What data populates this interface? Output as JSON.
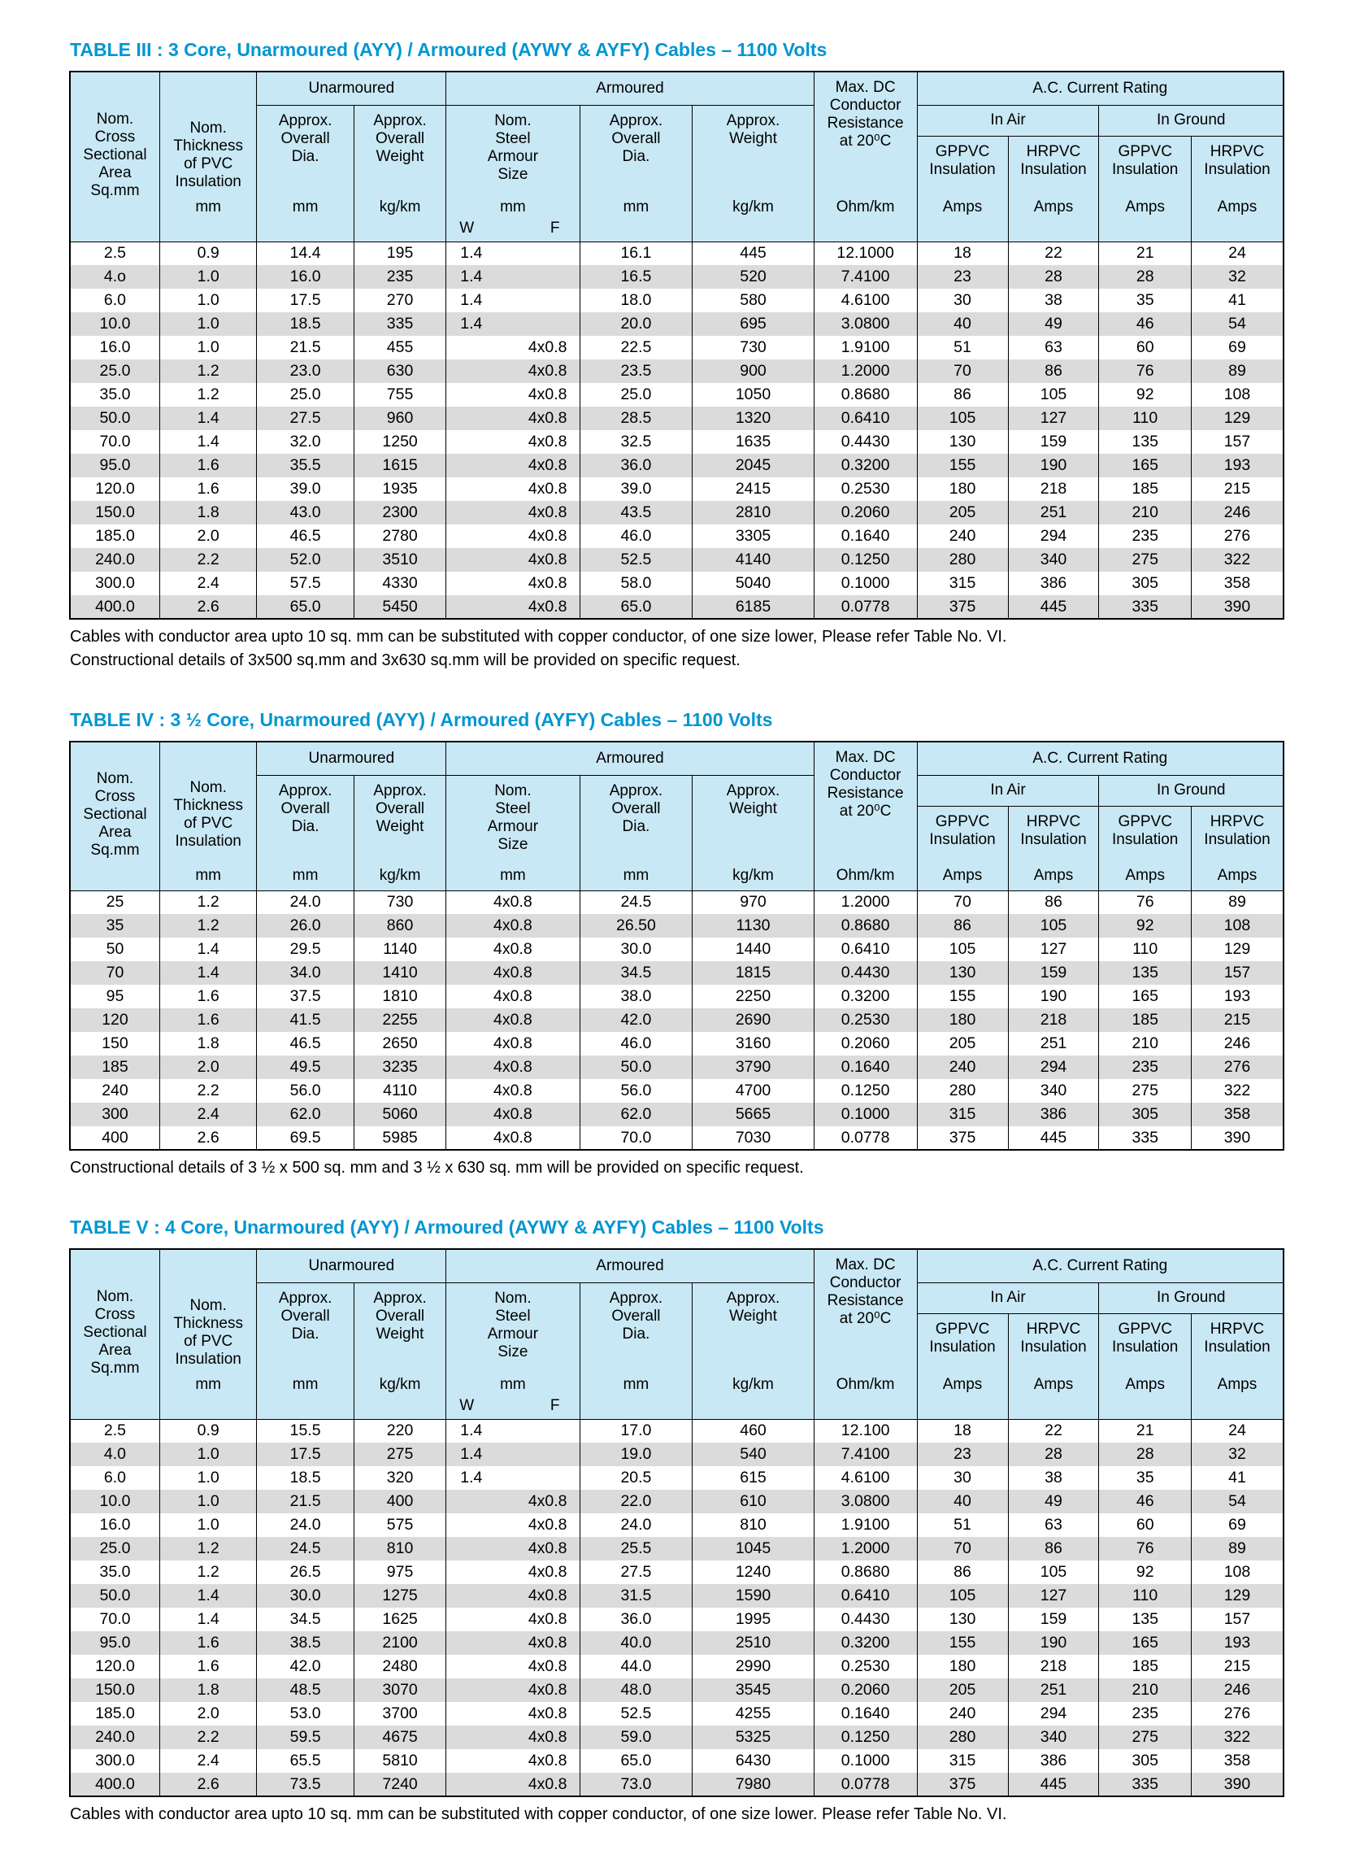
{
  "page": {
    "title_color": "#0096D2",
    "header_bg": "#C9E8F5",
    "stripe_color": "#DBDBDB"
  },
  "column_headers": {
    "col_area": {
      "label": [
        "Nom.",
        "Cross",
        "Sectional",
        "Area",
        "Sq.mm"
      ]
    },
    "col_thickness": {
      "label": [
        "Nom.",
        "Thickness",
        "of PVC",
        "Insulation"
      ],
      "unit": "mm"
    },
    "group_unarmoured": "Unarmoured",
    "group_armoured": "Armoured",
    "group_ac_rating": "A.C. Current Rating",
    "group_in_air": "In Air",
    "group_in_ground": "In Ground",
    "col_max_dc": {
      "label": [
        "Max. DC",
        "Conductor",
        "Resistance",
        "at 20⁰C"
      ],
      "unit": "Ohm/km"
    },
    "unarmoured": [
      {
        "label": [
          "Approx.",
          "Overall",
          "Dia."
        ],
        "unit": "mm"
      },
      {
        "label": [
          "Approx.",
          "Overall",
          "Weight"
        ],
        "unit": "kg/km"
      }
    ],
    "armoured": [
      {
        "label": [
          "Nom.",
          "Steel",
          "Armour",
          "Size"
        ],
        "unit": "mm",
        "sub": [
          "W",
          "F"
        ]
      },
      {
        "label": [
          "Approx.",
          "Overall",
          "Dia."
        ],
        "unit": "mm"
      },
      {
        "label": [
          "Approx.",
          "Weight"
        ],
        "unit": "kg/km"
      }
    ],
    "ratings": [
      {
        "label": [
          "GPPVC",
          "Insulation"
        ],
        "unit": "Amps"
      },
      {
        "label": [
          "HRPVC",
          "Insulation"
        ],
        "unit": "Amps"
      },
      {
        "label": [
          "GPPVC",
          "Insulation"
        ],
        "unit": "Amps"
      },
      {
        "label": [
          "HRPVC",
          "Insulation"
        ],
        "unit": "Amps"
      }
    ]
  },
  "tables": [
    {
      "id": "iii",
      "title": "TABLE III : 3 Core, Unarmoured (AYY) / Armoured (AYWY & AYFY) Cables – 1100 Volts",
      "show_wf": true,
      "rows": [
        [
          "2.5",
          "0.9",
          "14.4",
          "195",
          "1.4",
          "16.1",
          "445",
          "12.1000",
          "18",
          "22",
          "21",
          "24"
        ],
        [
          "4.o",
          "1.0",
          "16.0",
          "235",
          "1.4",
          "16.5",
          "520",
          "7.4100",
          "23",
          "28",
          "28",
          "32"
        ],
        [
          "6.0",
          "1.0",
          "17.5",
          "270",
          "1.4",
          "18.0",
          "580",
          "4.6100",
          "30",
          "38",
          "35",
          "41"
        ],
        [
          "10.0",
          "1.0",
          "18.5",
          "335",
          "1.4",
          "20.0",
          "695",
          "3.0800",
          "40",
          "49",
          "46",
          "54"
        ],
        [
          "16.0",
          "1.0",
          "21.5",
          "455",
          "4x0.8",
          "22.5",
          "730",
          "1.9100",
          "51",
          "63",
          "60",
          "69"
        ],
        [
          "25.0",
          "1.2",
          "23.0",
          "630",
          "4x0.8",
          "23.5",
          "900",
          "1.2000",
          "70",
          "86",
          "76",
          "89"
        ],
        [
          "35.0",
          "1.2",
          "25.0",
          "755",
          "4x0.8",
          "25.0",
          "1050",
          "0.8680",
          "86",
          "105",
          "92",
          "108"
        ],
        [
          "50.0",
          "1.4",
          "27.5",
          "960",
          "4x0.8",
          "28.5",
          "1320",
          "0.6410",
          "105",
          "127",
          "110",
          "129"
        ],
        [
          "70.0",
          "1.4",
          "32.0",
          "1250",
          "4x0.8",
          "32.5",
          "1635",
          "0.4430",
          "130",
          "159",
          "135",
          "157"
        ],
        [
          "95.0",
          "1.6",
          "35.5",
          "1615",
          "4x0.8",
          "36.0",
          "2045",
          "0.3200",
          "155",
          "190",
          "165",
          "193"
        ],
        [
          "120.0",
          "1.6",
          "39.0",
          "1935",
          "4x0.8",
          "39.0",
          "2415",
          "0.2530",
          "180",
          "218",
          "185",
          "215"
        ],
        [
          "150.0",
          "1.8",
          "43.0",
          "2300",
          "4x0.8",
          "43.5",
          "2810",
          "0.2060",
          "205",
          "251",
          "210",
          "246"
        ],
        [
          "185.0",
          "2.0",
          "46.5",
          "2780",
          "4x0.8",
          "46.0",
          "3305",
          "0.1640",
          "240",
          "294",
          "235",
          "276"
        ],
        [
          "240.0",
          "2.2",
          "52.0",
          "3510",
          "4x0.8",
          "52.5",
          "4140",
          "0.1250",
          "280",
          "340",
          "275",
          "322"
        ],
        [
          "300.0",
          "2.4",
          "57.5",
          "4330",
          "4x0.8",
          "58.0",
          "5040",
          "0.1000",
          "315",
          "386",
          "305",
          "358"
        ],
        [
          "400.0",
          "2.6",
          "65.0",
          "5450",
          "4x0.8",
          "65.0",
          "6185",
          "0.0778",
          "375",
          "445",
          "335",
          "390"
        ]
      ],
      "notes": [
        "Cables with conductor area upto 10 sq. mm can be substituted with copper conductor, of one size lower, Please refer Table No. VI.",
        "Constructional details of 3x500 sq.mm and 3x630 sq.mm will be provided on specific request."
      ]
    },
    {
      "id": "iv",
      "title": "TABLE IV : 3 ½ Core, Unarmoured (AYY) / Armoured (AYFY) Cables – 1100 Volts",
      "show_wf": false,
      "rows": [
        [
          "25",
          "1.2",
          "24.0",
          "730",
          "4x0.8",
          "24.5",
          "970",
          "1.2000",
          "70",
          "86",
          "76",
          "89"
        ],
        [
          "35",
          "1.2",
          "26.0",
          "860",
          "4x0.8",
          "26.50",
          "1130",
          "0.8680",
          "86",
          "105",
          "92",
          "108"
        ],
        [
          "50",
          "1.4",
          "29.5",
          "1140",
          "4x0.8",
          "30.0",
          "1440",
          "0.6410",
          "105",
          "127",
          "110",
          "129"
        ],
        [
          "70",
          "1.4",
          "34.0",
          "1410",
          "4x0.8",
          "34.5",
          "1815",
          "0.4430",
          "130",
          "159",
          "135",
          "157"
        ],
        [
          "95",
          "1.6",
          "37.5",
          "1810",
          "4x0.8",
          "38.0",
          "2250",
          "0.3200",
          "155",
          "190",
          "165",
          "193"
        ],
        [
          "120",
          "1.6",
          "41.5",
          "2255",
          "4x0.8",
          "42.0",
          "2690",
          "0.2530",
          "180",
          "218",
          "185",
          "215"
        ],
        [
          "150",
          "1.8",
          "46.5",
          "2650",
          "4x0.8",
          "46.0",
          "3160",
          "0.2060",
          "205",
          "251",
          "210",
          "246"
        ],
        [
          "185",
          "2.0",
          "49.5",
          "3235",
          "4x0.8",
          "50.0",
          "3790",
          "0.1640",
          "240",
          "294",
          "235",
          "276"
        ],
        [
          "240",
          "2.2",
          "56.0",
          "4110",
          "4x0.8",
          "56.0",
          "4700",
          "0.1250",
          "280",
          "340",
          "275",
          "322"
        ],
        [
          "300",
          "2.4",
          "62.0",
          "5060",
          "4x0.8",
          "62.0",
          "5665",
          "0.1000",
          "315",
          "386",
          "305",
          "358"
        ],
        [
          "400",
          "2.6",
          "69.5",
          "5985",
          "4x0.8",
          "70.0",
          "7030",
          "0.0778",
          "375",
          "445",
          "335",
          "390"
        ]
      ],
      "notes": [
        "Constructional details of 3 ½ x 500 sq. mm and 3 ½ x 630 sq. mm will be provided on specific request."
      ]
    },
    {
      "id": "v",
      "title": "TABLE V : 4 Core, Unarmoured (AYY) / Armoured (AYWY & AYFY) Cables – 1100 Volts",
      "show_wf": true,
      "rows": [
        [
          "2.5",
          "0.9",
          "15.5",
          "220",
          "1.4",
          "17.0",
          "460",
          "12.100",
          "18",
          "22",
          "21",
          "24"
        ],
        [
          "4.0",
          "1.0",
          "17.5",
          "275",
          "1.4",
          "19.0",
          "540",
          "7.4100",
          "23",
          "28",
          "28",
          "32"
        ],
        [
          "6.0",
          "1.0",
          "18.5",
          "320",
          "1.4",
          "20.5",
          "615",
          "4.6100",
          "30",
          "38",
          "35",
          "41"
        ],
        [
          "10.0",
          "1.0",
          "21.5",
          "400",
          "4x0.8",
          "22.0",
          "610",
          "3.0800",
          "40",
          "49",
          "46",
          "54"
        ],
        [
          "16.0",
          "1.0",
          "24.0",
          "575",
          "4x0.8",
          "24.0",
          "810",
          "1.9100",
          "51",
          "63",
          "60",
          "69"
        ],
        [
          "25.0",
          "1.2",
          "24.5",
          "810",
          "4x0.8",
          "25.5",
          "1045",
          "1.2000",
          "70",
          "86",
          "76",
          "89"
        ],
        [
          "35.0",
          "1.2",
          "26.5",
          "975",
          "4x0.8",
          "27.5",
          "1240",
          "0.8680",
          "86",
          "105",
          "92",
          "108"
        ],
        [
          "50.0",
          "1.4",
          "30.0",
          "1275",
          "4x0.8",
          "31.5",
          "1590",
          "0.6410",
          "105",
          "127",
          "110",
          "129"
        ],
        [
          "70.0",
          "1.4",
          "34.5",
          "1625",
          "4x0.8",
          "36.0",
          "1995",
          "0.4430",
          "130",
          "159",
          "135",
          "157"
        ],
        [
          "95.0",
          "1.6",
          "38.5",
          "2100",
          "4x0.8",
          "40.0",
          "2510",
          "0.3200",
          "155",
          "190",
          "165",
          "193"
        ],
        [
          "120.0",
          "1.6",
          "42.0",
          "2480",
          "4x0.8",
          "44.0",
          "2990",
          "0.2530",
          "180",
          "218",
          "185",
          "215"
        ],
        [
          "150.0",
          "1.8",
          "48.5",
          "3070",
          "4x0.8",
          "48.0",
          "3545",
          "0.2060",
          "205",
          "251",
          "210",
          "246"
        ],
        [
          "185.0",
          "2.0",
          "53.0",
          "3700",
          "4x0.8",
          "52.5",
          "4255",
          "0.1640",
          "240",
          "294",
          "235",
          "276"
        ],
        [
          "240.0",
          "2.2",
          "59.5",
          "4675",
          "4x0.8",
          "59.0",
          "5325",
          "0.1250",
          "280",
          "340",
          "275",
          "322"
        ],
        [
          "300.0",
          "2.4",
          "65.5",
          "5810",
          "4x0.8",
          "65.0",
          "6430",
          "0.1000",
          "315",
          "386",
          "305",
          "358"
        ],
        [
          "400.0",
          "2.6",
          "73.5",
          "7240",
          "4x0.8",
          "73.0",
          "7980",
          "0.0778",
          "375",
          "445",
          "335",
          "390"
        ]
      ],
      "notes": [
        "Cables with conductor area upto 10 sq. mm can be substituted with copper conductor, of one size lower. Please refer Table No. VI."
      ]
    }
  ]
}
